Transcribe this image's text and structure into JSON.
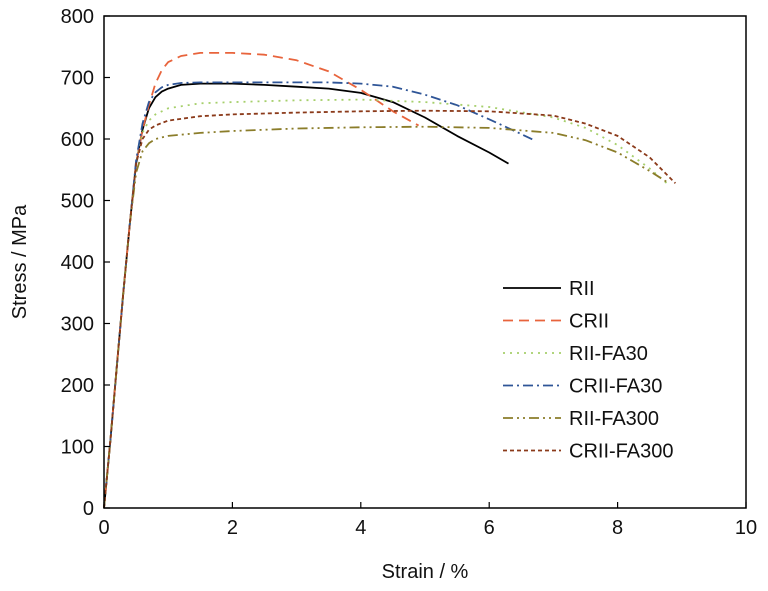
{
  "chart_data": {
    "type": "line",
    "xlabel": "Strain / %",
    "ylabel": "Stress / MPa",
    "xlim": [
      0,
      10
    ],
    "ylim": [
      0,
      800
    ],
    "xticks": [
      0,
      2,
      4,
      6,
      8,
      10
    ],
    "yticks": [
      0,
      100,
      200,
      300,
      400,
      500,
      600,
      700,
      800
    ],
    "grid": false,
    "legend_position": "bottom-right",
    "series": [
      {
        "name": "RII",
        "color": "#000000",
        "dash": "solid",
        "x": [
          0,
          0.1,
          0.2,
          0.3,
          0.4,
          0.5,
          0.6,
          0.7,
          0.8,
          0.9,
          1.0,
          1.2,
          1.5,
          2.0,
          2.5,
          3.0,
          3.5,
          4.0,
          4.5,
          5.0,
          5.5,
          6.0,
          6.3
        ],
        "y": [
          0,
          110,
          230,
          350,
          460,
          560,
          615,
          650,
          668,
          677,
          682,
          688,
          690,
          690,
          688,
          685,
          682,
          675,
          660,
          635,
          605,
          578,
          560
        ]
      },
      {
        "name": "CRII",
        "color": "#e8643c",
        "dash": "dashed",
        "x": [
          0,
          0.1,
          0.2,
          0.3,
          0.4,
          0.5,
          0.6,
          0.7,
          0.8,
          0.9,
          1.0,
          1.2,
          1.5,
          1.8,
          2.0,
          2.5,
          3.0,
          3.5,
          4.0,
          4.5,
          4.9
        ],
        "y": [
          0,
          110,
          230,
          350,
          460,
          560,
          615,
          655,
          690,
          712,
          725,
          735,
          740,
          740,
          740,
          737,
          728,
          710,
          680,
          645,
          622
        ]
      },
      {
        "name": "RII-FA30",
        "color": "#a6cf6b",
        "dash": "dotted",
        "x": [
          0,
          0.1,
          0.2,
          0.3,
          0.4,
          0.5,
          0.6,
          0.7,
          0.8,
          1.0,
          1.5,
          2.0,
          3.0,
          4.0,
          5.0,
          6.0,
          7.0,
          7.5,
          8.0,
          8.5,
          8.8
        ],
        "y": [
          0,
          110,
          230,
          350,
          460,
          560,
          610,
          630,
          640,
          650,
          658,
          660,
          663,
          664,
          660,
          652,
          635,
          618,
          590,
          552,
          525
        ]
      },
      {
        "name": "CRII-FA30",
        "color": "#2f5597",
        "dash": "dashdot",
        "x": [
          0,
          0.1,
          0.2,
          0.3,
          0.4,
          0.5,
          0.6,
          0.7,
          0.8,
          0.9,
          1.0,
          1.2,
          1.5,
          2.0,
          2.5,
          3.0,
          3.5,
          4.0,
          4.5,
          5.0,
          5.5,
          6.0,
          6.5,
          6.7
        ],
        "y": [
          0,
          110,
          230,
          350,
          460,
          565,
          625,
          660,
          676,
          684,
          688,
          691,
          692,
          692,
          692,
          692,
          692,
          690,
          685,
          672,
          655,
          632,
          608,
          598
        ]
      },
      {
        "name": "RII-FA300",
        "color": "#8b7d2a",
        "dash": "dashdotdot",
        "x": [
          0,
          0.1,
          0.2,
          0.3,
          0.4,
          0.5,
          0.6,
          0.7,
          0.8,
          1.0,
          1.5,
          2.0,
          3.0,
          4.0,
          5.0,
          6.0,
          7.0,
          7.5,
          8.0,
          8.5,
          8.8
        ],
        "y": [
          0,
          110,
          230,
          350,
          460,
          545,
          580,
          593,
          600,
          605,
          610,
          613,
          617,
          619,
          620,
          618,
          610,
          598,
          578,
          548,
          528
        ]
      },
      {
        "name": "CRII-FA300",
        "color": "#8b3a1a",
        "dash": "shortdash",
        "x": [
          0,
          0.1,
          0.2,
          0.3,
          0.4,
          0.5,
          0.6,
          0.7,
          0.8,
          1.0,
          1.5,
          2.0,
          3.0,
          4.0,
          5.0,
          6.0,
          7.0,
          7.5,
          8.0,
          8.5,
          8.9
        ],
        "y": [
          0,
          110,
          230,
          350,
          460,
          560,
          600,
          615,
          622,
          630,
          637,
          640,
          643,
          645,
          646,
          645,
          638,
          625,
          605,
          570,
          528
        ]
      }
    ]
  }
}
